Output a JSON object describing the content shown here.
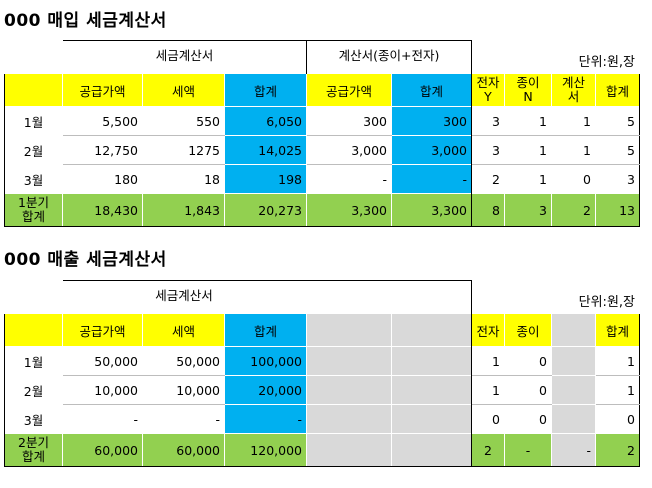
{
  "purchase": {
    "title": "000 매입 세금계산서",
    "unit": "단위:원,장",
    "group_tax_invoice": "세금계산서",
    "group_invoice_all": "계산서(종이+전자)",
    "headers": [
      "공급가액",
      "세액",
      "합계",
      "공급가액",
      "합계",
      "전자\nY",
      "종이\nN",
      "계산\n서",
      "합계"
    ],
    "rows": [
      {
        "label": "1월",
        "values": [
          "5,500",
          "550",
          "6,050",
          "300",
          "300",
          "3",
          "1",
          "1",
          "5"
        ]
      },
      {
        "label": "2월",
        "values": [
          "12,750",
          "1275",
          "14,025",
          "3,000",
          "3,000",
          "3",
          "1",
          "1",
          "5"
        ]
      },
      {
        "label": "3월",
        "values": [
          "180",
          "18",
          "198",
          "-",
          "-",
          "2",
          "1",
          "0",
          "3"
        ]
      }
    ],
    "total": {
      "label": "1분기\n합계",
      "values": [
        "18,430",
        "1,843",
        "20,273",
        "3,300",
        "3,300",
        "8",
        "3",
        "2",
        "13"
      ]
    }
  },
  "sales": {
    "title": "000 매출 세금계산서",
    "unit": "단위:원,장",
    "group_tax_invoice": "세금계산서",
    "headers": [
      "공급가액",
      "세액",
      "합계",
      "",
      "",
      "전자",
      "종이",
      "",
      "합계"
    ],
    "rows": [
      {
        "label": "1월",
        "values": [
          "50,000",
          "50,000",
          "100,000",
          "",
          "",
          "1",
          "0",
          "",
          "1"
        ]
      },
      {
        "label": "2월",
        "values": [
          "10,000",
          "10,000",
          "20,000",
          "",
          "",
          "1",
          "0",
          "",
          "1"
        ]
      },
      {
        "label": "3월",
        "values": [
          "-",
          "-",
          "-",
          "",
          "",
          "0",
          "0",
          "",
          "0"
        ]
      }
    ],
    "total": {
      "label": "2분기\n합계",
      "values": [
        "60,000",
        "60,000",
        "120,000",
        "",
        "",
        "2",
        "-",
        "-",
        "2"
      ]
    }
  },
  "colors": {
    "header_yellow": "#ffff00",
    "sum_blue": "#00b0f0",
    "total_green": "#92d050",
    "empty_gray": "#d9d9d9"
  }
}
